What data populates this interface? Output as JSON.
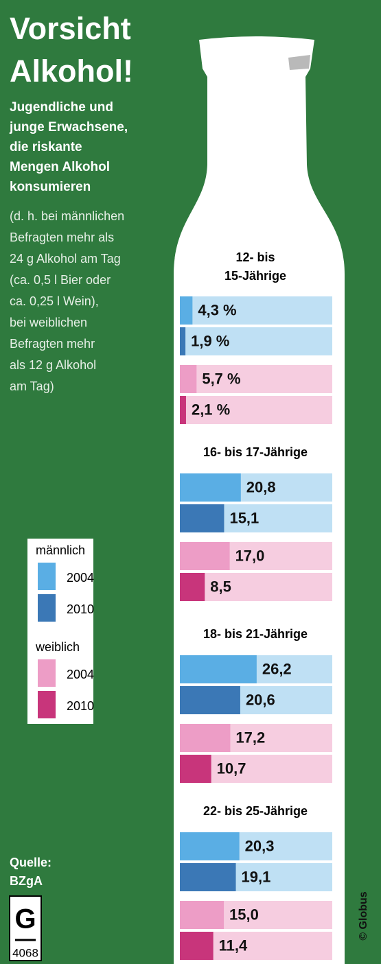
{
  "chart_data": {
    "type": "bar",
    "title": [
      "Vorsicht",
      "Alkohol!"
    ],
    "subtitle": [
      "Jugendliche und",
      "junge Erwachsene,",
      "die riskante",
      "Mengen Alkohol",
      "konsumieren"
    ],
    "note": [
      "(d. h. bei männlichen",
      "Befragten mehr als",
      "24 g Alkohol am Tag",
      "(ca. 0,5 l Bier oder",
      "ca. 0,25 l Wein),",
      "bei weiblichen",
      "Befragten mehr",
      "als 12 g Alkohol",
      "am Tag)"
    ],
    "categories": [
      "12- bis\n15-Jährige",
      "16- bis 17-Jährige",
      "18- bis 21-Jährige",
      "22- bis 25-Jährige"
    ],
    "xlim": [
      0,
      52
    ],
    "series_groups": [
      {
        "name": "männlich",
        "series": [
          {
            "name": "2004",
            "color": "#5aaee4",
            "track_color": "#bfe0f4",
            "values": [
              4.3,
              20.8,
              26.2,
              20.3
            ],
            "value_labels": [
              "4,3 %",
              "20,8",
              "26,2",
              "20,3"
            ]
          },
          {
            "name": "2010",
            "color": "#3b78b6",
            "track_color": "#bfe0f4",
            "values": [
              1.9,
              15.1,
              20.6,
              19.1
            ],
            "value_labels": [
              "1,9 %",
              "15,1",
              "20,6",
              "19,1"
            ]
          }
        ]
      },
      {
        "name": "weiblich",
        "series": [
          {
            "name": "2004",
            "color": "#ed9dc6",
            "track_color": "#f6cde0",
            "values": [
              5.7,
              17.0,
              17.2,
              15.0
            ],
            "value_labels": [
              "5,7 %",
              "17,0",
              "17,2",
              "15,0"
            ]
          },
          {
            "name": "2010",
            "color": "#c8357b",
            "track_color": "#f6cde0",
            "values": [
              2.1,
              8.5,
              10.7,
              11.4
            ],
            "value_labels": [
              "2,1 %",
              "8,5",
              "10,7",
              "11,4"
            ]
          }
        ]
      }
    ],
    "source": [
      "Quelle:",
      "BZgA"
    ],
    "credit": "© Globus",
    "code": "4068"
  }
}
